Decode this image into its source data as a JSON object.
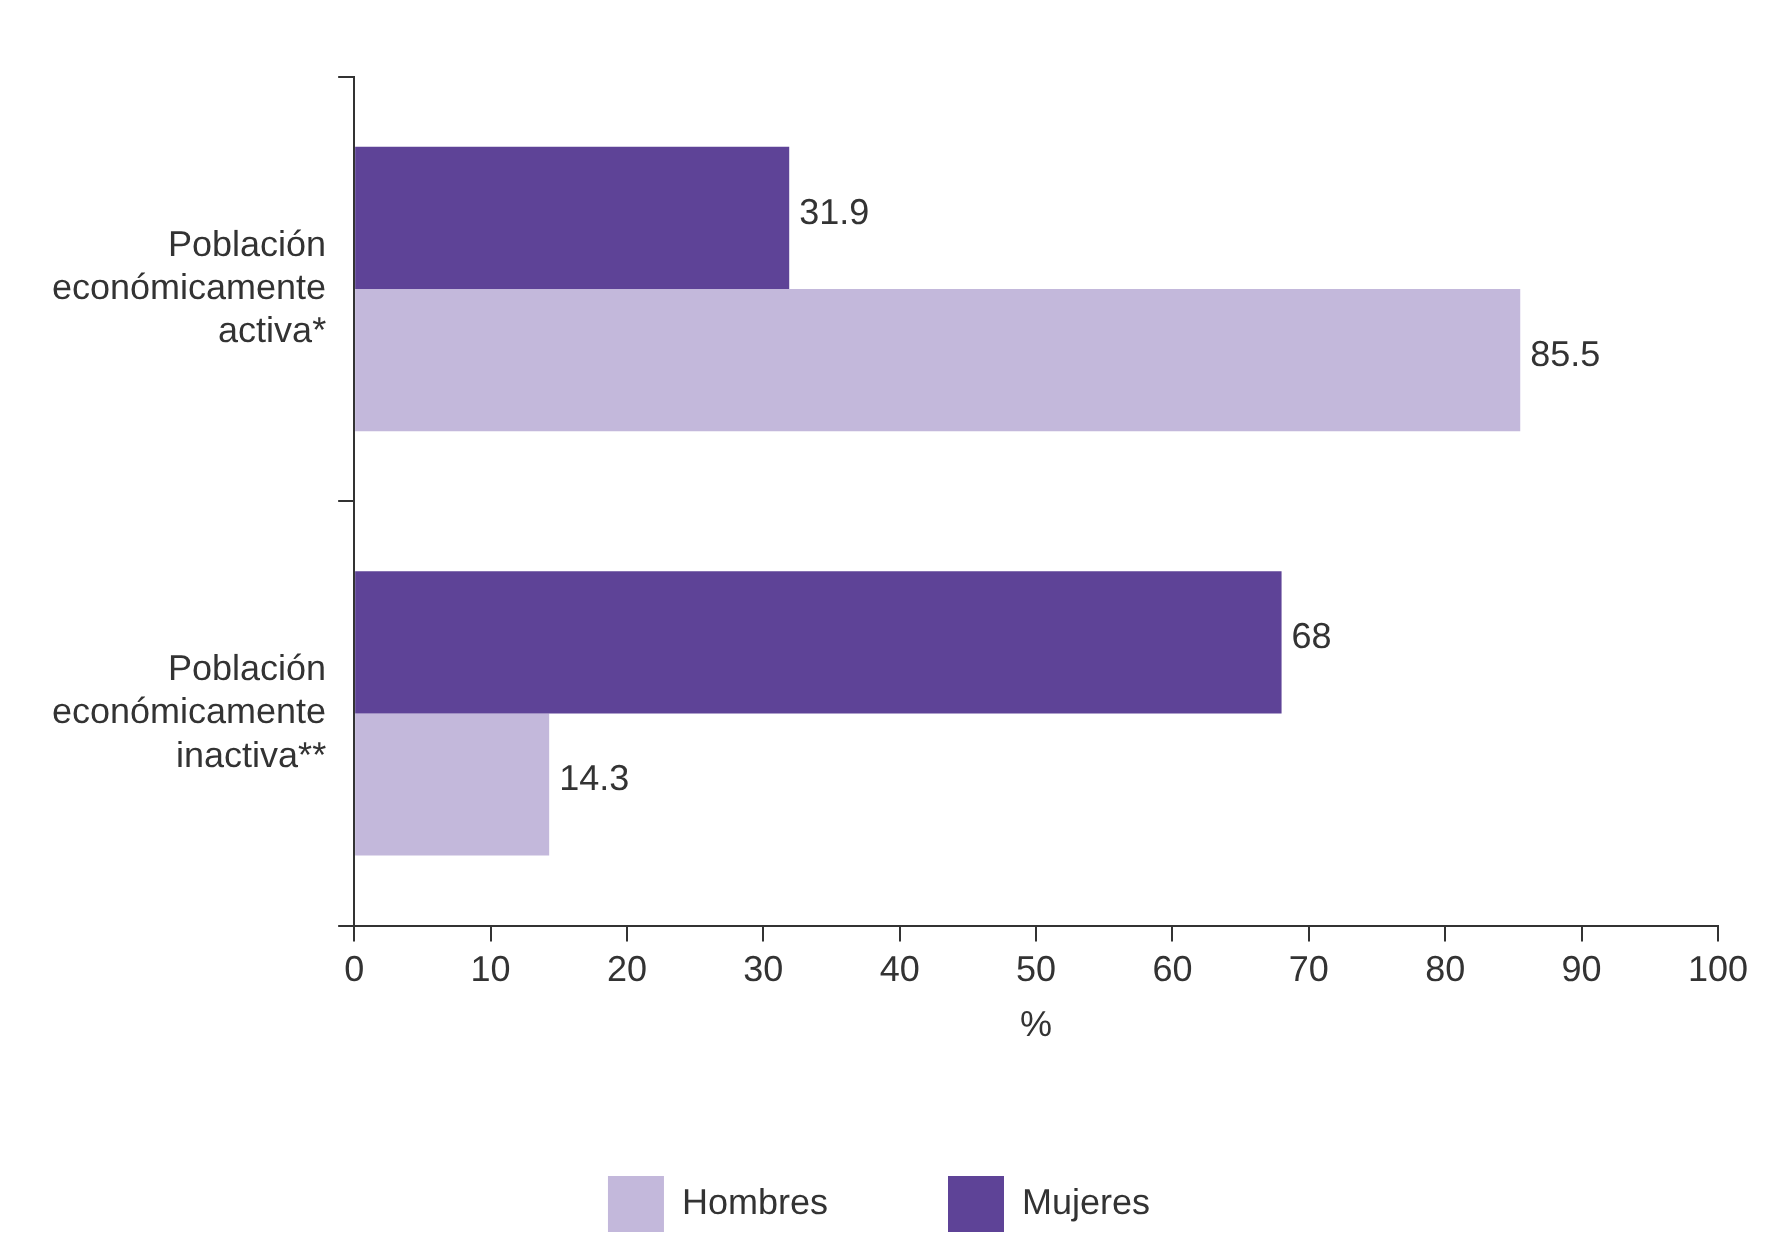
{
  "chart_data": {
    "type": "bar",
    "orientation": "horizontal",
    "xlabel": "%",
    "categories": [
      "Población económicamente activa*",
      "Población económicamente inactiva**"
    ],
    "series": [
      {
        "name": "Mujeres",
        "color": "#5e4397",
        "values": [
          31.9,
          68
        ]
      },
      {
        "name": "Hombres",
        "color": "#c3b8db",
        "values": [
          85.5,
          14.3
        ]
      }
    ],
    "xlim": [
      0,
      100
    ],
    "xticks": [
      0,
      10,
      20,
      30,
      40,
      50,
      60,
      70,
      80,
      90,
      100
    ],
    "grid": false,
    "legend": "bottom",
    "data_labels": true
  }
}
